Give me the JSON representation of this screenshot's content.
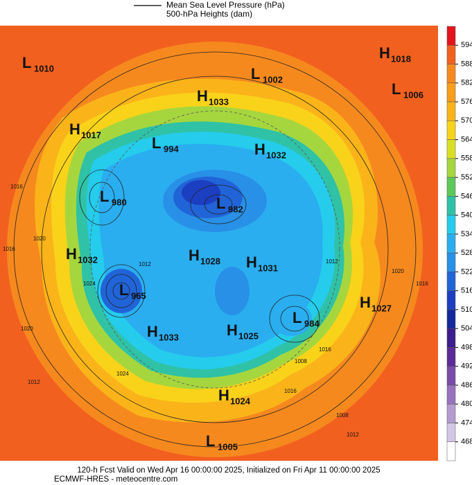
{
  "legend": {
    "lines": [
      "Mean Sea Level Pressure (hPa)",
      "500-hPa Heights (dam)"
    ]
  },
  "colorbar": {
    "ticks": [
      594,
      588,
      582,
      576,
      570,
      564,
      558,
      552,
      546,
      540,
      534,
      528,
      522,
      516,
      510,
      504,
      498,
      492,
      486,
      480,
      474,
      468
    ],
    "colors": [
      "#e3141c",
      "#f2601f",
      "#f6891e",
      "#f89d1c",
      "#fab41a",
      "#f9d31a",
      "#d9e024",
      "#a6d63e",
      "#5dc85a",
      "#2fc2a6",
      "#25ccec",
      "#2aaef0",
      "#2890e6",
      "#2164d8",
      "#1c3fc2",
      "#13299e",
      "#3b1d8e",
      "#5b2c98",
      "#7a4ca8",
      "#9872bc",
      "#b49cd2",
      "#d2c6e6",
      "#ffffff"
    ]
  },
  "centers": [
    {
      "type": "L",
      "value": "1010"
    },
    {
      "type": "L",
      "value": "1002"
    },
    {
      "type": "H",
      "value": "1018"
    },
    {
      "type": "L",
      "value": "1006"
    },
    {
      "type": "H",
      "value": "1033"
    },
    {
      "type": "H",
      "value": "1017"
    },
    {
      "type": "L",
      "value": "994"
    },
    {
      "type": "H",
      "value": "1032"
    },
    {
      "type": "L",
      "value": "980"
    },
    {
      "type": "L",
      "value": "982"
    },
    {
      "type": "H",
      "value": "1032"
    },
    {
      "type": "H",
      "value": "1028"
    },
    {
      "type": "H",
      "value": "1031"
    },
    {
      "type": "L",
      "value": "965"
    },
    {
      "type": "L",
      "value": "984"
    },
    {
      "type": "H",
      "value": "1027"
    },
    {
      "type": "H",
      "value": "1033"
    },
    {
      "type": "H",
      "value": "1025"
    },
    {
      "type": "H",
      "value": "1024"
    },
    {
      "type": "L",
      "value": "1005"
    }
  ],
  "contour_labels": [
    "1016",
    "1020",
    "1016",
    "1024",
    "1012",
    "1020",
    "1024",
    "1012",
    "1016",
    "1020",
    "1012",
    "1016",
    "1008",
    "1016",
    "1012",
    "1008"
  ],
  "footer": [
    "120-h Fcst Valid on Wed Apr 16 00:00:00 2025, Initialized on Fri Apr 11 00:00:00 2025",
    "ECMWF-HRES - meteocentre.com"
  ]
}
